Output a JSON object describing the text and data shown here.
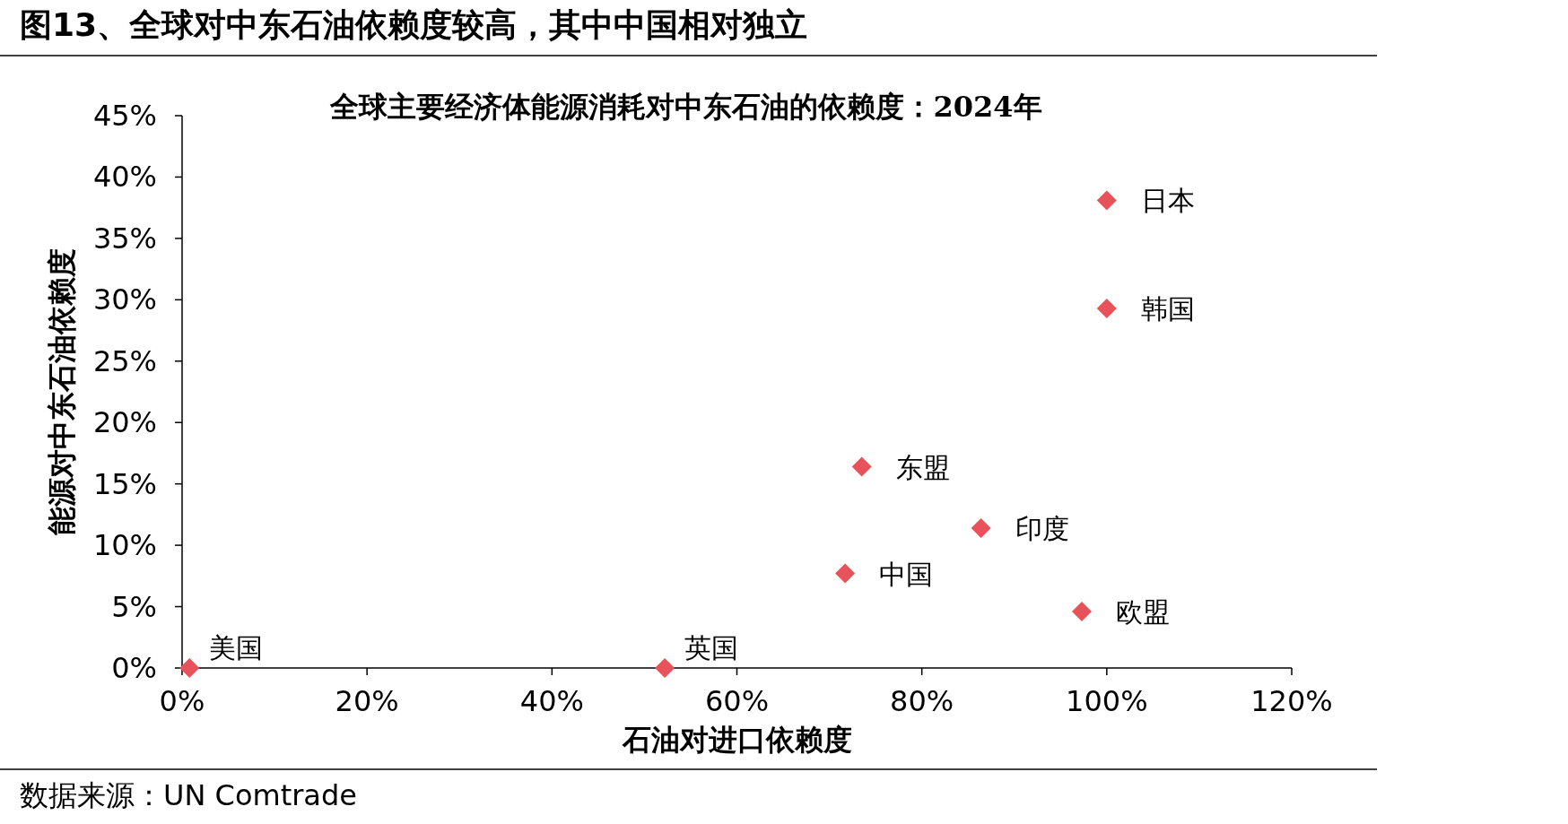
{
  "chart_data": {
    "type": "scatter",
    "title": "图13、全球对中东石油依赖度较高，其中中国相对独立",
    "subtitle": "全球主要经济体能源消耗对中东石油的依赖度：2024年",
    "xlabel": "石油对进口依赖度",
    "ylabel": "能源对中东石油依赖度",
    "series": [
      {
        "color": "#e8525a",
        "x": [
          100,
          100,
          73.5,
          86.4,
          71.7,
          97.3,
          0.8,
          52.2
        ],
        "values": [
          38.1,
          29.3,
          16.4,
          11.4,
          7.7,
          4.6,
          0,
          0
        ]
      }
    ],
    "annotations": [
      {
        "text": "日本",
        "x": 100,
        "y": 38.1
      },
      {
        "text": "韩国",
        "x": 100,
        "y": 29.3
      },
      {
        "text": "东盟",
        "x": 73.5,
        "y": 16.4
      },
      {
        "text": "印度",
        "x": 86.4,
        "y": 11.4
      },
      {
        "text": "中国",
        "x": 71.7,
        "y": 7.7
      },
      {
        "text": "欧盟",
        "x": 97.3,
        "y": 4.6
      },
      {
        "text": "美国",
        "x": 0.8,
        "y": 0
      },
      {
        "text": "英国",
        "x": 52.2,
        "y": 0
      },
      "数据来源：UN Comtrade"
    ],
    "marker": "diamond",
    "grid": false,
    "xlim": [
      0,
      120
    ],
    "xticks": [
      {
        "value": 0,
        "label": "0%"
      },
      {
        "value": 20,
        "label": "20%"
      },
      {
        "value": 40,
        "label": "40%"
      },
      {
        "value": 60,
        "label": "60%"
      },
      {
        "value": 80,
        "label": "80%"
      },
      {
        "value": 100,
        "label": "100%"
      },
      {
        "value": 120,
        "label": "120%"
      }
    ],
    "ylim": [
      0,
      45
    ],
    "yticks": [
      {
        "value": 0,
        "label": "0%"
      },
      {
        "value": 5,
        "label": "5%"
      },
      {
        "value": 10,
        "label": "10%"
      },
      {
        "value": 15,
        "label": "15%"
      },
      {
        "value": 20,
        "label": "20%"
      },
      {
        "value": 25,
        "label": "25%"
      },
      {
        "value": 30,
        "label": "30%"
      },
      {
        "value": 35,
        "label": "35%"
      },
      {
        "value": 40,
        "label": "40%"
      },
      {
        "value": 45,
        "label": "45%"
      }
    ]
  }
}
